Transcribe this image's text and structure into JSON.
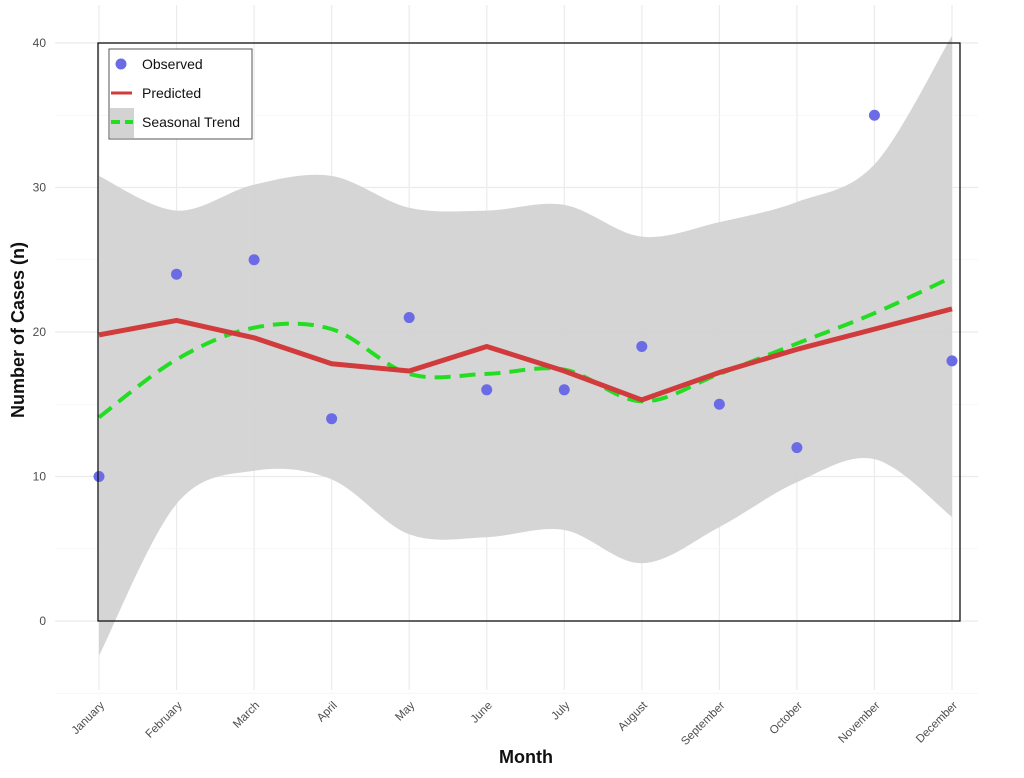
{
  "chart_data": {
    "type": "line",
    "xlabel": "Month",
    "ylabel": "Number of Cases (n)",
    "categories": [
      "January",
      "February",
      "March",
      "April",
      "May",
      "June",
      "July",
      "August",
      "September",
      "October",
      "November",
      "December"
    ],
    "ylim": [
      -5,
      42
    ],
    "yticks": [
      0,
      10,
      20,
      30,
      40
    ],
    "grid": true,
    "legend_position": "top-left",
    "series": [
      {
        "name": "Observed",
        "kind": "scatter",
        "color": "#6b6be6",
        "values": [
          10,
          24,
          25,
          14,
          21,
          16,
          16,
          19,
          15,
          12,
          35,
          18
        ]
      },
      {
        "name": "Predicted",
        "kind": "line",
        "color": "#d13b3b",
        "values": [
          19.8,
          20.8,
          19.6,
          17.8,
          17.3,
          19.0,
          17.3,
          15.3,
          17.2,
          18.8,
          20.2,
          21.6
        ]
      },
      {
        "name": "Seasonal Trend",
        "kind": "line-dashed",
        "color": "#22dd22",
        "values": [
          14.1,
          18.1,
          20.3,
          20.2,
          17.1,
          17.1,
          17.4,
          15.2,
          17.1,
          19.2,
          21.3,
          23.8
        ]
      }
    ],
    "band": {
      "color": "#d3d3d3",
      "upper": [
        30.8,
        28.4,
        30.2,
        30.8,
        28.6,
        28.4,
        28.8,
        26.6,
        27.6,
        29.0,
        31.6,
        40.5
      ],
      "lower": [
        -2.4,
        8.1,
        10.4,
        9.8,
        6.0,
        5.8,
        6.3,
        4.0,
        6.5,
        9.6,
        11.2,
        7.2
      ]
    }
  }
}
